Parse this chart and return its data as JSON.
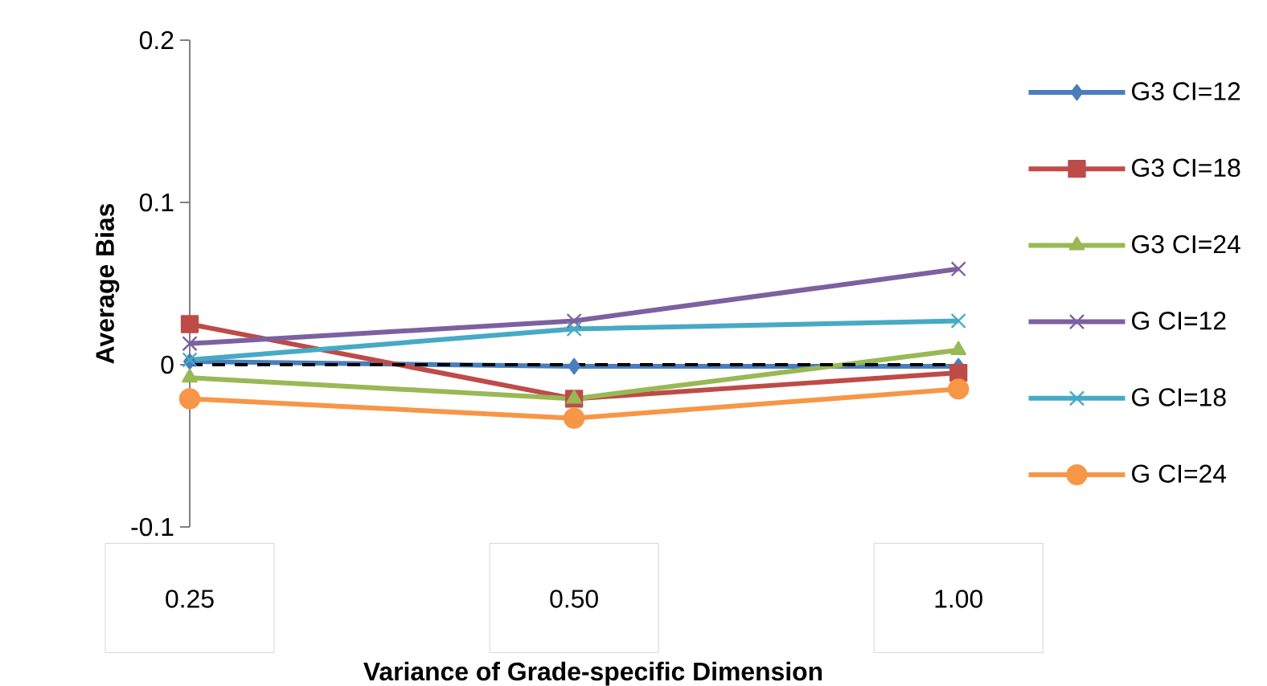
{
  "chart_data": {
    "type": "line",
    "xlabel": "Variance of Grade-specific Dimension",
    "ylabel": "Average Bias",
    "categories": [
      "0.25",
      "0.50",
      "1.00"
    ],
    "series": [
      {
        "name": "G3 CI=12",
        "color": "#4a7ebb",
        "marker": "diamond",
        "values": [
          0.002,
          -0.001,
          -0.001
        ]
      },
      {
        "name": "G3 CI=18",
        "color": "#be4b48",
        "marker": "square",
        "values": [
          0.025,
          -0.021,
          -0.005
        ]
      },
      {
        "name": "G3 CI=24",
        "color": "#98b954",
        "marker": "triangle",
        "values": [
          -0.008,
          -0.021,
          0.009
        ]
      },
      {
        "name": "G CI=12",
        "color": "#7d60a0",
        "marker": "cross",
        "values": [
          0.013,
          0.027,
          0.059
        ]
      },
      {
        "name": "G CI=18",
        "color": "#46aac5",
        "marker": "cross",
        "values": [
          0.003,
          0.022,
          0.027
        ]
      },
      {
        "name": "G CI=24",
        "color": "#f79646",
        "marker": "circle",
        "values": [
          -0.021,
          -0.033,
          -0.015
        ]
      }
    ],
    "ylim": [
      -0.1,
      0.2
    ],
    "yticks": [
      -0.1,
      0,
      0.1,
      0.2
    ],
    "ref_lines": [
      {
        "axis": "y",
        "value": 0,
        "color": "#000000",
        "line_style": "dashed"
      }
    ],
    "legend": "right"
  }
}
